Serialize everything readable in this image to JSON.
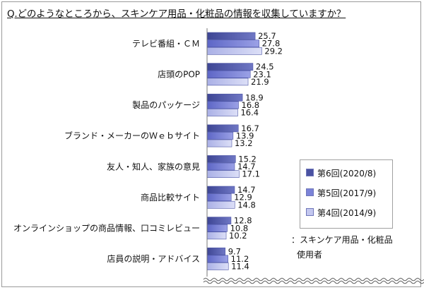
{
  "chart_data": {
    "type": "bar",
    "orientation": "horizontal",
    "title": "Q.どのようなところから、スキンケア用品・化粧品の情報を収集していますか？",
    "categories": [
      "テレビ番組・ＣＭ",
      "店頭のPOP",
      "製品のパッケージ",
      "ブランド・メーカーのＷｅｂサイト",
      "友人・知人、家族の意見",
      "商品比較サイト",
      "オンラインショップの商品情報、口コミレビュー",
      "店員の説明・アドバイス"
    ],
    "series": [
      {
        "name": "第6回(2020/8)",
        "values": [
          25.7,
          24.5,
          18.9,
          16.7,
          15.2,
          14.7,
          12.8,
          9.7
        ]
      },
      {
        "name": "第5回(2017/9)",
        "values": [
          27.8,
          23.1,
          16.8,
          13.9,
          14.7,
          12.9,
          10.8,
          11.2
        ]
      },
      {
        "name": "第4回(2014/9)",
        "values": [
          29.2,
          21.9,
          16.4,
          13.2,
          17.1,
          14.8,
          10.2,
          11.4
        ]
      }
    ],
    "legend_position": "bottom-right",
    "note": [
      "：スキンケア用品・化粧品",
      "使用者"
    ],
    "colors": [
      "#5a62b0",
      "#7b83d8",
      "#c3c7ef"
    ],
    "grid": false
  }
}
